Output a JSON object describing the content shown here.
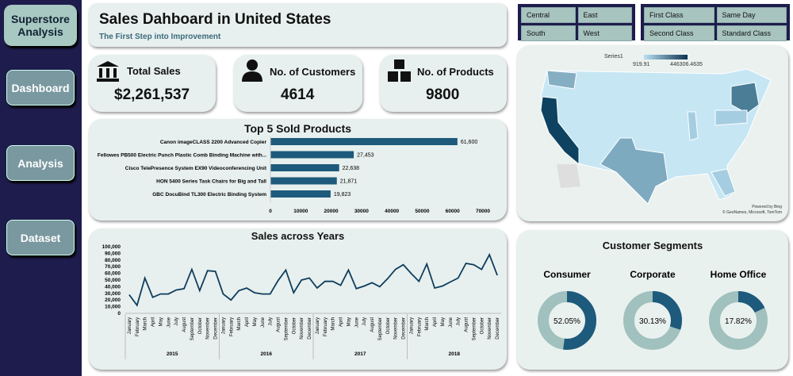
{
  "sidebar": {
    "title": "Superstore Analysis",
    "items": [
      "Dashboard",
      "Analysis",
      "Dataset"
    ]
  },
  "header": {
    "title": "Sales Dahboard in United States",
    "subtitle": "The First Step into Improvement"
  },
  "region_filter": [
    "Central",
    "East",
    "South",
    "West"
  ],
  "ship_filter": [
    "First Class",
    "Same Day",
    "Second Class",
    "Standard Class"
  ],
  "kpis": [
    {
      "label": "Total Sales",
      "value": "$2,261,537",
      "icon": "bank-icon"
    },
    {
      "label": "No. of Customers",
      "value": "4614",
      "icon": "person-icon"
    },
    {
      "label": "No. of Products",
      "value": "9800",
      "icon": "boxes-icon"
    }
  ],
  "colors": {
    "bar": "#1d5a7c",
    "line": "#0f3d5e",
    "dark": "#1e1c4c",
    "card": "#e7f0ee",
    "ring_bg": "#a0c1bd"
  },
  "chart_data": [
    {
      "type": "bar",
      "title": "Top 5 Sold Products",
      "categories": [
        "Canon imageCLASS 2200 Advanced Copier",
        "Fellowes PB500 Electric Punch Plastic Comb Binding Machine with...",
        "Cisco TelePresence System EX90 Videoconferencing Unit",
        "HON 5400 Series Task Chairs for Big and Tall",
        "GBC DocuBind TL300 Electric Binding System"
      ],
      "values": [
        61600,
        27453,
        22638,
        21871,
        19823
      ],
      "labels": [
        "61,600",
        "27,453",
        "22,638",
        "21,871",
        "19,823"
      ],
      "xlim": [
        0,
        70000
      ],
      "xticks": [
        "0",
        "10000",
        "20000",
        "30000",
        "40000",
        "50000",
        "60000",
        "70000"
      ]
    },
    {
      "type": "line",
      "title": "Sales across Years",
      "months": [
        "January",
        "February",
        "March",
        "April",
        "May",
        "June",
        "July",
        "August",
        "September",
        "October",
        "November",
        "December"
      ],
      "years": [
        "2015",
        "2016",
        "2017",
        "2018"
      ],
      "values": [
        28000,
        12000,
        53000,
        24000,
        29000,
        29000,
        35000,
        37000,
        66000,
        34000,
        64000,
        63000,
        29000,
        20000,
        34000,
        38000,
        31000,
        29000,
        29000,
        49000,
        65000,
        31000,
        50000,
        53000,
        38000,
        48000,
        48000,
        42000,
        65000,
        37000,
        41000,
        46000,
        40000,
        52000,
        66000,
        73000,
        60000,
        48000,
        74000,
        38000,
        41000,
        47000,
        53000,
        75000,
        73000,
        66000,
        88000,
        57000
      ],
      "ylim": [
        0,
        100000
      ],
      "yticks": [
        "0",
        "10,000",
        "20,000",
        "30,000",
        "40,000",
        "50,000",
        "60,000",
        "70,000",
        "80,000",
        "90,000",
        "100,000"
      ]
    },
    {
      "type": "pie",
      "title": "Customer Segments",
      "segments": [
        {
          "name": "Consumer",
          "value": 52.05,
          "label": "52.05%"
        },
        {
          "name": "Corporate",
          "value": 30.13,
          "label": "30.13%"
        },
        {
          "name": "Home Office",
          "value": 17.82,
          "label": "17.82%"
        }
      ]
    }
  ],
  "map": {
    "legend_series": "Series1",
    "min": "919.91",
    "max": "446306.4635",
    "credit1": "Powered by Bing",
    "credit2": "© GeoNames, Microsoft, TomTom"
  }
}
